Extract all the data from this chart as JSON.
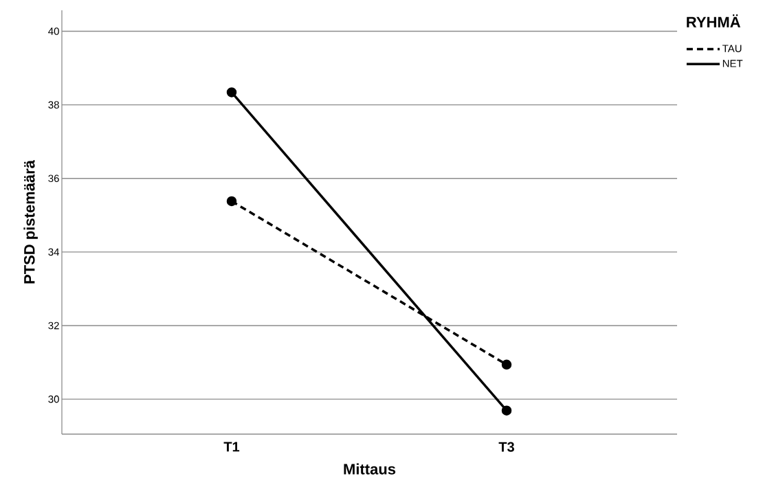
{
  "chart_data": {
    "type": "line",
    "xlabel": "Mittaus",
    "ylabel": "PTSD pistemäärä",
    "legend_title": "RYHMÄ",
    "categories": [
      "T1",
      "T3"
    ],
    "series": [
      {
        "name": "TAU",
        "color": "#000000",
        "values": [
          35.38,
          30.94
        ],
        "line_style": "dashed"
      },
      {
        "name": "NET",
        "color": "#000000",
        "values": [
          38.34,
          29.69
        ],
        "line_style": "solid"
      }
    ],
    "ylim": [
      29.05,
      40.57
    ],
    "yticks": [
      30,
      32,
      34,
      36,
      38,
      40
    ],
    "grid": "y",
    "legend": "top right",
    "marker": "circle"
  }
}
